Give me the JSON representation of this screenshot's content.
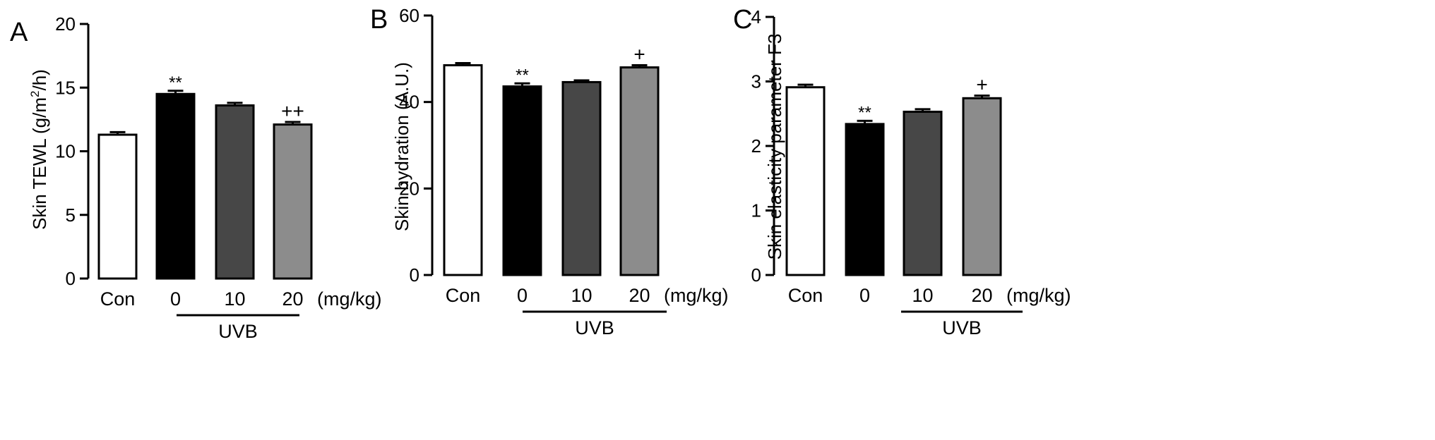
{
  "chart_data": [
    {
      "panel_label": "A",
      "type": "bar",
      "categories": [
        "Con",
        "0",
        "10",
        "20"
      ],
      "unit_label": "(mg/kg)",
      "group_label": "UVB",
      "values": [
        11.3,
        14.5,
        13.6,
        12.1
      ],
      "errors": [
        0.2,
        0.25,
        0.2,
        0.2
      ],
      "significance": [
        "",
        "**",
        "",
        "++"
      ],
      "bar_colors": [
        "#ffffff",
        "#000000",
        "#474747",
        "#8c8c8c"
      ],
      "ylabel_parts": [
        "Skin TEWL (g/m",
        "2",
        "/h)"
      ],
      "ylim": [
        0,
        20
      ],
      "yticks": [
        0,
        5,
        10,
        15,
        20
      ]
    },
    {
      "panel_label": "B",
      "type": "bar",
      "categories": [
        "Con",
        "0",
        "10",
        "20"
      ],
      "unit_label": "(mg/kg)",
      "group_label": "UVB",
      "values": [
        48.5,
        43.6,
        44.6,
        48.0
      ],
      "errors": [
        0.5,
        0.7,
        0.4,
        0.5
      ],
      "significance": [
        "",
        "**",
        "",
        "+"
      ],
      "bar_colors": [
        "#ffffff",
        "#000000",
        "#474747",
        "#8c8c8c"
      ],
      "ylabel_parts": [
        "Skin hydration (A.U.)"
      ],
      "ylim": [
        0,
        60
      ],
      "yticks": [
        0,
        20,
        40,
        60
      ]
    },
    {
      "panel_label": "C",
      "type": "bar",
      "categories": [
        "Con",
        "0",
        "10",
        "20"
      ],
      "unit_label": "(mg/kg)",
      "group_label": "UVB",
      "values": [
        2.91,
        2.34,
        2.53,
        2.74
      ],
      "errors": [
        0.04,
        0.05,
        0.04,
        0.04
      ],
      "significance": [
        "",
        "**",
        "",
        "+"
      ],
      "bar_colors": [
        "#ffffff",
        "#000000",
        "#474747",
        "#8c8c8c"
      ],
      "ylabel_parts": [
        "Skin elasticity parameter F3"
      ],
      "ylim": [
        0,
        4
      ],
      "yticks": [
        0,
        1,
        2,
        3,
        4
      ]
    }
  ]
}
